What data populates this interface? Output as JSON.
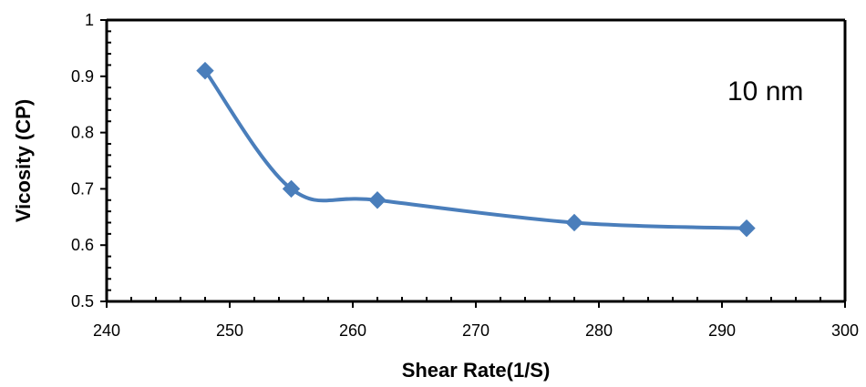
{
  "chart_data": {
    "type": "line",
    "xlabel": "Shear Rate(1/S)",
    "ylabel": "Vicosity (CP)",
    "annotation": "10 nm",
    "xlim": [
      240,
      300
    ],
    "ylim": [
      0.5,
      1
    ],
    "x_ticks": [
      240,
      250,
      260,
      270,
      280,
      290,
      300
    ],
    "y_ticks": [
      0.5,
      0.6,
      0.7,
      0.8,
      0.9,
      1
    ],
    "x_tick_labels": [
      "240",
      "250",
      "260",
      "270",
      "280",
      "290",
      "300"
    ],
    "y_tick_labels": [
      "0.5",
      "0.6",
      "0.7",
      "0.8",
      "0.9",
      "1"
    ],
    "grid": false,
    "smooth": true,
    "marker": "diamond",
    "series_color": "#4a7ebb",
    "series": [
      {
        "x": [
          248,
          255,
          262,
          278,
          292
        ],
        "values": [
          0.91,
          0.7,
          0.68,
          0.64,
          0.63
        ]
      }
    ]
  }
}
